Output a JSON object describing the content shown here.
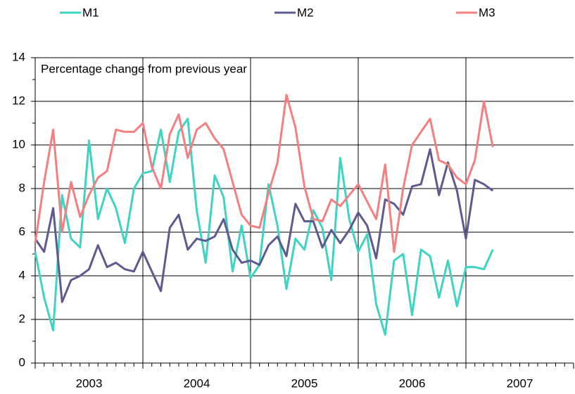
{
  "chart_data": {
    "type": "line",
    "y_label": "Percentage change from previous year",
    "x": [
      2003,
      2003.083,
      2003.167,
      2003.25,
      2003.333,
      2003.417,
      2003.5,
      2003.583,
      2003.667,
      2003.75,
      2003.833,
      2003.917,
      2004,
      2004.083,
      2004.167,
      2004.25,
      2004.333,
      2004.417,
      2004.5,
      2004.583,
      2004.667,
      2004.75,
      2004.833,
      2004.917,
      2005,
      2005.083,
      2005.167,
      2005.25,
      2005.333,
      2005.417,
      2005.5,
      2005.583,
      2005.667,
      2005.75,
      2005.833,
      2005.917,
      2006,
      2006.083,
      2006.167,
      2006.25,
      2006.333,
      2006.417,
      2006.5,
      2006.583,
      2006.667,
      2006.75,
      2006.833,
      2006.917,
      2007,
      2007.083,
      2007.167,
      2007.25
    ],
    "series": [
      {
        "name": "M1",
        "color": "#3fd3c3",
        "values": [
          5.1,
          3.0,
          1.5,
          7.7,
          5.7,
          5.3,
          10.2,
          6.6,
          8.0,
          7.1,
          5.5,
          8.0,
          8.7,
          8.8,
          10.7,
          8.3,
          10.6,
          11.2,
          7.0,
          4.6,
          8.6,
          7.6,
          4.2,
          6.3,
          3.9,
          4.5,
          8.2,
          6.3,
          3.4,
          5.7,
          5.2,
          7.0,
          6.2,
          3.8,
          9.4,
          6.6,
          5.1,
          5.9,
          2.7,
          1.3,
          4.7,
          5.0,
          2.2,
          5.2,
          4.9,
          3.0,
          4.7,
          2.6,
          4.4,
          4.4,
          4.3,
          5.2
        ]
      },
      {
        "name": "M2",
        "color": "#5c5a8e",
        "values": [
          5.7,
          5.1,
          7.1,
          2.8,
          3.8,
          4.0,
          4.3,
          5.4,
          4.4,
          4.6,
          4.3,
          4.2,
          5.1,
          4.2,
          3.3,
          6.2,
          6.8,
          5.2,
          5.7,
          5.6,
          5.8,
          6.6,
          5.2,
          4.6,
          4.7,
          4.5,
          5.4,
          5.8,
          4.9,
          7.3,
          6.5,
          6.5,
          5.3,
          6.1,
          5.5,
          6.1,
          6.9,
          6.3,
          4.8,
          7.5,
          7.3,
          6.8,
          8.1,
          8.2,
          9.8,
          7.7,
          9.2,
          7.9,
          5.7,
          8.4,
          8.2,
          7.9
        ]
      },
      {
        "name": "M3",
        "color": "#f57f7f",
        "values": [
          5.5,
          8.3,
          10.7,
          6.0,
          8.3,
          6.7,
          7.7,
          8.5,
          8.8,
          10.7,
          10.6,
          10.6,
          11.0,
          9.0,
          8.0,
          10.5,
          11.4,
          9.4,
          10.7,
          11.0,
          10.3,
          9.8,
          8.3,
          6.8,
          6.3,
          6.2,
          7.8,
          9.2,
          12.3,
          10.8,
          8.1,
          6.6,
          6.5,
          7.5,
          7.2,
          7.7,
          8.2,
          7.4,
          6.6,
          9.1,
          5.1,
          8.0,
          10.0,
          10.6,
          11.2,
          9.3,
          9.1,
          8.5,
          8.2,
          9.3,
          12.0,
          9.9
        ]
      }
    ],
    "xlim": [
      2003,
      2008
    ],
    "xticks": [
      2003,
      2004,
      2005,
      2006,
      2007,
      2008
    ],
    "year_labels": [
      2003,
      2004,
      2005,
      2006,
      2007
    ],
    "ylim": [
      0,
      14
    ],
    "yticks": [
      0,
      2,
      4,
      6,
      8,
      10,
      12,
      14
    ],
    "grid": true
  }
}
